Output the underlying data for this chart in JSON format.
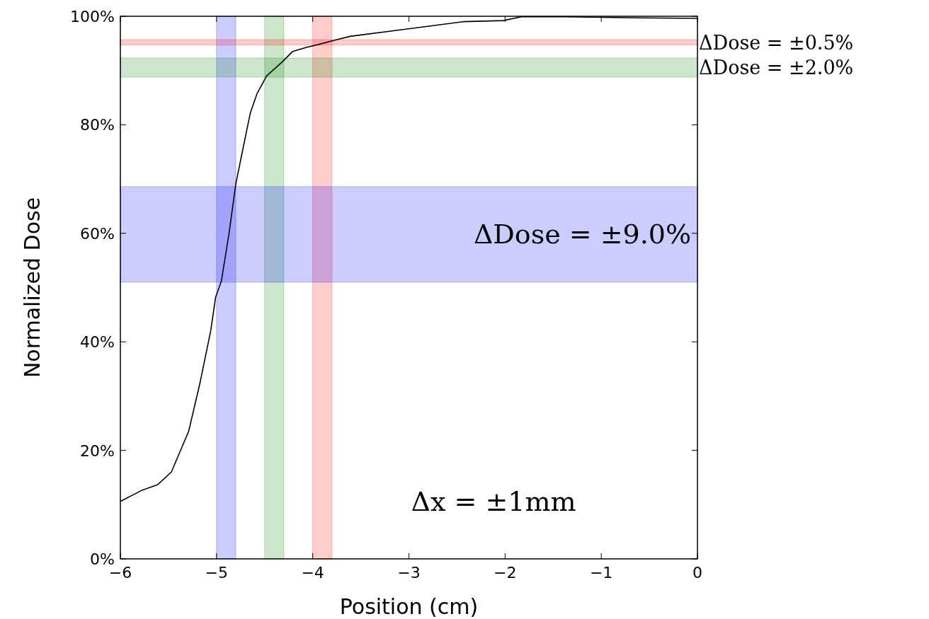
{
  "chart_data": {
    "type": "line",
    "xlabel": "Position (cm)",
    "ylabel": "Normalized Dose",
    "xlim": [
      -6,
      0
    ],
    "ylim": [
      0,
      100
    ],
    "xticks": [
      {
        "value": -6,
        "label": "−6"
      },
      {
        "value": -5,
        "label": "−5"
      },
      {
        "value": -4,
        "label": "−4"
      },
      {
        "value": -3,
        "label": "−3"
      },
      {
        "value": -2,
        "label": "−2"
      },
      {
        "value": -1,
        "label": "−1"
      },
      0
    ],
    "yticks": [
      {
        "value": 0,
        "label": "0%"
      },
      {
        "value": 20,
        "label": "20%"
      },
      {
        "value": 40,
        "label": "40%"
      },
      {
        "value": 60,
        "label": "60%"
      },
      {
        "value": 80,
        "label": "80%"
      },
      {
        "value": 100,
        "label": "100%"
      }
    ],
    "grid": false,
    "marker": "none",
    "line_style": "solid",
    "series": [
      {
        "color": "#000000",
        "x": [
          -6,
          -5.78,
          -5.61,
          -5.47,
          -5.29,
          -5.17,
          -5.06,
          -5.01,
          -4.95,
          -4.87,
          -4.8,
          -4.73,
          -4.65,
          -4.58,
          -4.48,
          -4.31,
          -4.21,
          -4.06,
          -3.94,
          -3.77,
          -3.61,
          -3.09,
          -2.44,
          -2.02,
          -1.83,
          -1.38,
          -0.59,
          0
        ],
        "values": [
          10.6,
          12.6,
          13.7,
          16,
          23.5,
          32.6,
          42.1,
          48.2,
          51.2,
          60,
          69.1,
          75.2,
          82.1,
          85.7,
          89,
          91.7,
          93.5,
          94.3,
          94.8,
          95.6,
          96.3,
          97.5,
          99,
          99.2,
          99.9,
          99.9,
          99.7,
          99.6
        ]
      }
    ],
    "bands": [
      {
        "axis": "x",
        "from": -5,
        "to": -4.8,
        "color": "#0000ff"
      },
      {
        "axis": "x",
        "from": -4.5,
        "to": -4.3,
        "color": "#008000"
      },
      {
        "axis": "x",
        "from": -4,
        "to": -3.8,
        "color": "#ff0000"
      },
      {
        "axis": "y",
        "from": 51,
        "to": 68.6,
        "color": "#0000ff",
        "label": "ΔDose = ±9.0%"
      },
      {
        "axis": "y",
        "from": 88.8,
        "to": 92.3,
        "color": "#008000",
        "label": "ΔDose = ±2.0%"
      },
      {
        "axis": "y",
        "from": 94.7,
        "to": 95.7,
        "color": "#ff0000",
        "label": "ΔDose = ±0.5%"
      }
    ],
    "annotations": [
      "Δx = ±1mm"
    ]
  }
}
